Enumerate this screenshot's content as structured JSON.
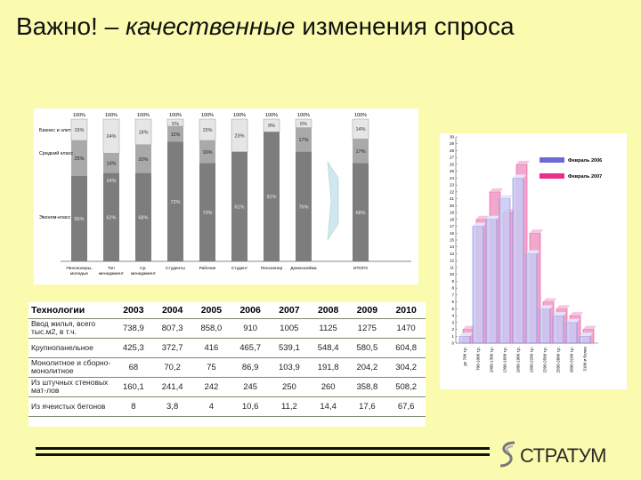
{
  "title": {
    "part1": "Важно! – ",
    "part2": "качественные",
    "part3": " изменения спроса"
  },
  "stacked_chart": {
    "top_labels": [
      "100%",
      "100%",
      "100%",
      "100%",
      "100%",
      "100%",
      "100%",
      "100%",
      "100%"
    ],
    "row_labels": [
      "Бизнес и элит",
      "Средний класс",
      "Эконом-класс"
    ],
    "categories": [
      "Пенсионеры, молодые",
      "Топ менеджмент",
      "Ср. менеджмент",
      "Студенты",
      "Рабочие",
      "Студент",
      "Пенсионер",
      "Домохозяйка",
      "ИТОГО"
    ],
    "business_pct": [
      15,
      24,
      18,
      5,
      15,
      23,
      9,
      6,
      14
    ],
    "middle_pct": [
      25,
      14,
      20,
      11,
      16,
      0,
      0,
      17,
      17
    ],
    "economy_pct": [
      65,
      62,
      68,
      72,
      73,
      61,
      91,
      76,
      68
    ],
    "business_lbl": [
      "15%",
      "24%",
      "18%",
      "5%",
      "15%",
      "23%",
      "9%",
      "6%",
      "14%"
    ],
    "middle_lbl": [
      "25%",
      "14%",
      "20%",
      "11%",
      "16%",
      "",
      "",
      "17%",
      "17%"
    ],
    "extra_lbl": [
      "",
      "24%",
      "",
      "",
      "",
      "",
      "",
      "",
      ""
    ],
    "economy_lbl": [
      "65%",
      "62%",
      "68%",
      "72%",
      "73%",
      "61%",
      "91%",
      "76%",
      "68%"
    ]
  },
  "chart_data": {
    "type": "bar",
    "categories": [
      "до 700 т.р.",
      "700-1000 т.р.",
      "1000-1300 т.р.",
      "1300-1600 т.р.",
      "1600-1900 т.р.",
      "1900-2200 т.р.",
      "2200-2500 т.р.",
      "2500-2800 т.р.",
      "2800-3100 т.р.",
      "3100 и более"
    ],
    "series": [
      {
        "name": "Февраль 2006",
        "values": [
          1,
          17,
          18,
          21,
          24,
          13,
          5,
          4,
          3,
          1
        ]
      },
      {
        "name": "Февраль 2007",
        "values": [
          2,
          18,
          22,
          19,
          26,
          16,
          6,
          5,
          4,
          2
        ]
      }
    ],
    "y_ticks": [
      "0",
      "1",
      "2",
      "3",
      "4",
      "5",
      "6",
      "7",
      "8",
      "9",
      "10",
      "11",
      "12",
      "13",
      "14",
      "15",
      "16",
      "17",
      "18",
      "19",
      "20",
      "21",
      "22",
      "23",
      "24",
      "25",
      "26",
      "27",
      "28",
      "29",
      "30"
    ],
    "ylim": [
      0,
      30
    ]
  },
  "table": {
    "headers": [
      "Технологии",
      "2003",
      "2004",
      "2005",
      "2006",
      "2007",
      "2008",
      "2009",
      "2010"
    ],
    "rows": [
      [
        "Ввод жилья, всего тыс.м2, в т.ч.",
        "738,9",
        "807,3",
        "858,0",
        "910",
        "1005",
        "1125",
        "1275",
        "1470"
      ],
      [
        "Крупнопанельное",
        "425,3",
        "372,7",
        "416",
        "465,7",
        "539,1",
        "548,4",
        "580,5",
        "604,8"
      ],
      [
        "Монолитное и сборно-монолитное",
        "68",
        "70,2",
        "75",
        "86,9",
        "103,9",
        "191,8",
        "204,2",
        "304,2"
      ],
      [
        "Из штучных стеновых мат-лов",
        "160,1",
        "241,4",
        "242",
        "245",
        "250",
        "260",
        "358,8",
        "508,2"
      ],
      [
        "Из ячеистых бетонов",
        "8",
        "3,8",
        "4",
        "10,6",
        "11,2",
        "14,4",
        "17,6",
        "67,6"
      ]
    ]
  },
  "logo": {
    "text": "СТРАТУМ"
  },
  "colors": {
    "background": "#fbfbb0",
    "dark_bar": "#7d7d7d",
    "mid_bar": "#a9a9a9",
    "light_bar": "#e6e6e6",
    "series1": "#6a6ad8",
    "series2": "#e8308a"
  }
}
